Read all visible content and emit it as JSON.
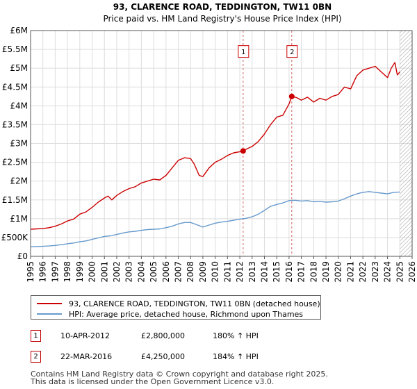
{
  "chart_data": {
    "type": "line",
    "title": "93, CLARENCE ROAD, TEDDINGTON, TW11 0BN",
    "subtitle": "Price paid vs. HM Land Registry's House Price Index (HPI)",
    "xlabel": "",
    "ylabel": "",
    "xlim": [
      1995,
      2026
    ],
    "ylim": [
      0,
      6000000
    ],
    "x_ticks": [
      "1995",
      "1996",
      "1997",
      "1998",
      "1999",
      "2000",
      "2001",
      "2002",
      "2003",
      "2004",
      "2005",
      "2006",
      "2007",
      "2008",
      "2009",
      "2010",
      "2011",
      "2012",
      "2013",
      "2014",
      "2015",
      "2016",
      "2017",
      "2018",
      "2019",
      "2020",
      "2021",
      "2022",
      "2023",
      "2024",
      "2025",
      "2026"
    ],
    "y_ticks": [
      {
        "value": 0,
        "label": "£0"
      },
      {
        "value": 500000,
        "label": "£500K"
      },
      {
        "value": 1000000,
        "label": "£1M"
      },
      {
        "value": 1500000,
        "label": "£1.5M"
      },
      {
        "value": 2000000,
        "label": "£2M"
      },
      {
        "value": 2500000,
        "label": "£2.5M"
      },
      {
        "value": 3000000,
        "label": "£3M"
      },
      {
        "value": 3500000,
        "label": "£3.5M"
      },
      {
        "value": 4000000,
        "label": "£4M"
      },
      {
        "value": 4500000,
        "label": "£4.5M"
      },
      {
        "value": 5000000,
        "label": "£5M"
      },
      {
        "value": 5500000,
        "label": "£5.5M"
      },
      {
        "value": 6000000,
        "label": "£6M"
      }
    ],
    "grid": true,
    "hatched_from": 2025.0,
    "series": [
      {
        "name": "93, CLARENCE ROAD, TEDDINGTON, TW11 0BN (detached house)",
        "color": "#cc0000",
        "points": [
          [
            1995.0,
            720000
          ],
          [
            1995.5,
            730000
          ],
          [
            1996.0,
            740000
          ],
          [
            1996.5,
            760000
          ],
          [
            1997.0,
            800000
          ],
          [
            1997.5,
            860000
          ],
          [
            1998.0,
            940000
          ],
          [
            1998.5,
            990000
          ],
          [
            1999.0,
            1120000
          ],
          [
            1999.5,
            1180000
          ],
          [
            2000.0,
            1300000
          ],
          [
            2000.5,
            1440000
          ],
          [
            2001.0,
            1550000
          ],
          [
            2001.3,
            1600000
          ],
          [
            2001.6,
            1500000
          ],
          [
            2002.0,
            1620000
          ],
          [
            2002.5,
            1720000
          ],
          [
            2003.0,
            1800000
          ],
          [
            2003.5,
            1850000
          ],
          [
            2004.0,
            1950000
          ],
          [
            2004.5,
            2000000
          ],
          [
            2005.0,
            2050000
          ],
          [
            2005.5,
            2030000
          ],
          [
            2006.0,
            2150000
          ],
          [
            2006.5,
            2350000
          ],
          [
            2007.0,
            2550000
          ],
          [
            2007.5,
            2620000
          ],
          [
            2008.0,
            2600000
          ],
          [
            2008.3,
            2450000
          ],
          [
            2008.7,
            2150000
          ],
          [
            2009.0,
            2120000
          ],
          [
            2009.5,
            2350000
          ],
          [
            2010.0,
            2500000
          ],
          [
            2010.5,
            2580000
          ],
          [
            2011.0,
            2680000
          ],
          [
            2011.5,
            2750000
          ],
          [
            2012.0,
            2780000
          ],
          [
            2012.27,
            2800000
          ],
          [
            2012.6,
            2860000
          ],
          [
            2013.0,
            2920000
          ],
          [
            2013.5,
            3050000
          ],
          [
            2014.0,
            3250000
          ],
          [
            2014.5,
            3500000
          ],
          [
            2015.0,
            3700000
          ],
          [
            2015.5,
            3750000
          ],
          [
            2016.0,
            4050000
          ],
          [
            2016.22,
            4250000
          ],
          [
            2016.6,
            4220000
          ],
          [
            2017.0,
            4150000
          ],
          [
            2017.5,
            4230000
          ],
          [
            2018.0,
            4100000
          ],
          [
            2018.5,
            4200000
          ],
          [
            2019.0,
            4150000
          ],
          [
            2019.5,
            4250000
          ],
          [
            2020.0,
            4300000
          ],
          [
            2020.5,
            4500000
          ],
          [
            2021.0,
            4450000
          ],
          [
            2021.5,
            4800000
          ],
          [
            2022.0,
            4950000
          ],
          [
            2022.5,
            5000000
          ],
          [
            2023.0,
            5050000
          ],
          [
            2023.5,
            4900000
          ],
          [
            2024.0,
            4750000
          ],
          [
            2024.3,
            5000000
          ],
          [
            2024.6,
            5150000
          ],
          [
            2024.8,
            4820000
          ],
          [
            2025.0,
            4900000
          ]
        ]
      },
      {
        "name": "HPI: Average price, detached house, Richmond upon Thames",
        "color": "#6699cc",
        "points": [
          [
            1995.0,
            255000
          ],
          [
            1995.5,
            258000
          ],
          [
            1996.0,
            265000
          ],
          [
            1996.5,
            275000
          ],
          [
            1997.0,
            290000
          ],
          [
            1997.5,
            310000
          ],
          [
            1998.0,
            335000
          ],
          [
            1998.5,
            355000
          ],
          [
            1999.0,
            385000
          ],
          [
            1999.5,
            410000
          ],
          [
            2000.0,
            450000
          ],
          [
            2000.5,
            490000
          ],
          [
            2001.0,
            530000
          ],
          [
            2001.5,
            545000
          ],
          [
            2002.0,
            580000
          ],
          [
            2002.5,
            620000
          ],
          [
            2003.0,
            650000
          ],
          [
            2003.5,
            665000
          ],
          [
            2004.0,
            690000
          ],
          [
            2004.5,
            710000
          ],
          [
            2005.0,
            720000
          ],
          [
            2005.5,
            730000
          ],
          [
            2006.0,
            760000
          ],
          [
            2006.5,
            800000
          ],
          [
            2007.0,
            860000
          ],
          [
            2007.5,
            900000
          ],
          [
            2008.0,
            900000
          ],
          [
            2008.5,
            840000
          ],
          [
            2009.0,
            780000
          ],
          [
            2009.5,
            830000
          ],
          [
            2010.0,
            880000
          ],
          [
            2010.5,
            910000
          ],
          [
            2011.0,
            930000
          ],
          [
            2011.5,
            960000
          ],
          [
            2012.0,
            990000
          ],
          [
            2012.5,
            1010000
          ],
          [
            2013.0,
            1050000
          ],
          [
            2013.5,
            1120000
          ],
          [
            2014.0,
            1220000
          ],
          [
            2014.5,
            1330000
          ],
          [
            2015.0,
            1380000
          ],
          [
            2015.5,
            1420000
          ],
          [
            2016.0,
            1480000
          ],
          [
            2016.5,
            1490000
          ],
          [
            2017.0,
            1470000
          ],
          [
            2017.5,
            1480000
          ],
          [
            2018.0,
            1450000
          ],
          [
            2018.5,
            1460000
          ],
          [
            2019.0,
            1440000
          ],
          [
            2019.5,
            1450000
          ],
          [
            2020.0,
            1470000
          ],
          [
            2020.5,
            1530000
          ],
          [
            2021.0,
            1600000
          ],
          [
            2021.5,
            1660000
          ],
          [
            2022.0,
            1700000
          ],
          [
            2022.5,
            1720000
          ],
          [
            2023.0,
            1700000
          ],
          [
            2023.5,
            1680000
          ],
          [
            2024.0,
            1660000
          ],
          [
            2024.5,
            1700000
          ],
          [
            2025.0,
            1710000
          ]
        ]
      }
    ],
    "sales": [
      {
        "marker": "1",
        "x": 2012.27,
        "price": 2800000,
        "date": "10-APR-2012",
        "price_label": "£2,800,000",
        "hpi_label": "180% ↑ HPI"
      },
      {
        "marker": "2",
        "x": 2016.22,
        "price": 4250000,
        "date": "22-MAR-2016",
        "price_label": "£4,250,000",
        "hpi_label": "184% ↑ HPI"
      }
    ]
  },
  "colors": {
    "property": "#cc0000",
    "hpi": "#6699cc",
    "grid": "#dddddd",
    "marker_line": "#d06060"
  },
  "legend": {
    "property_label": "93, CLARENCE ROAD, TEDDINGTON, TW11 0BN (detached house)",
    "hpi_label": "HPI: Average price, detached house, Richmond upon Thames"
  },
  "footer": {
    "line1": "Contains HM Land Registry data © Crown copyright and database right 2025.",
    "line2": "This data is licensed under the Open Government Licence v3.0."
  }
}
